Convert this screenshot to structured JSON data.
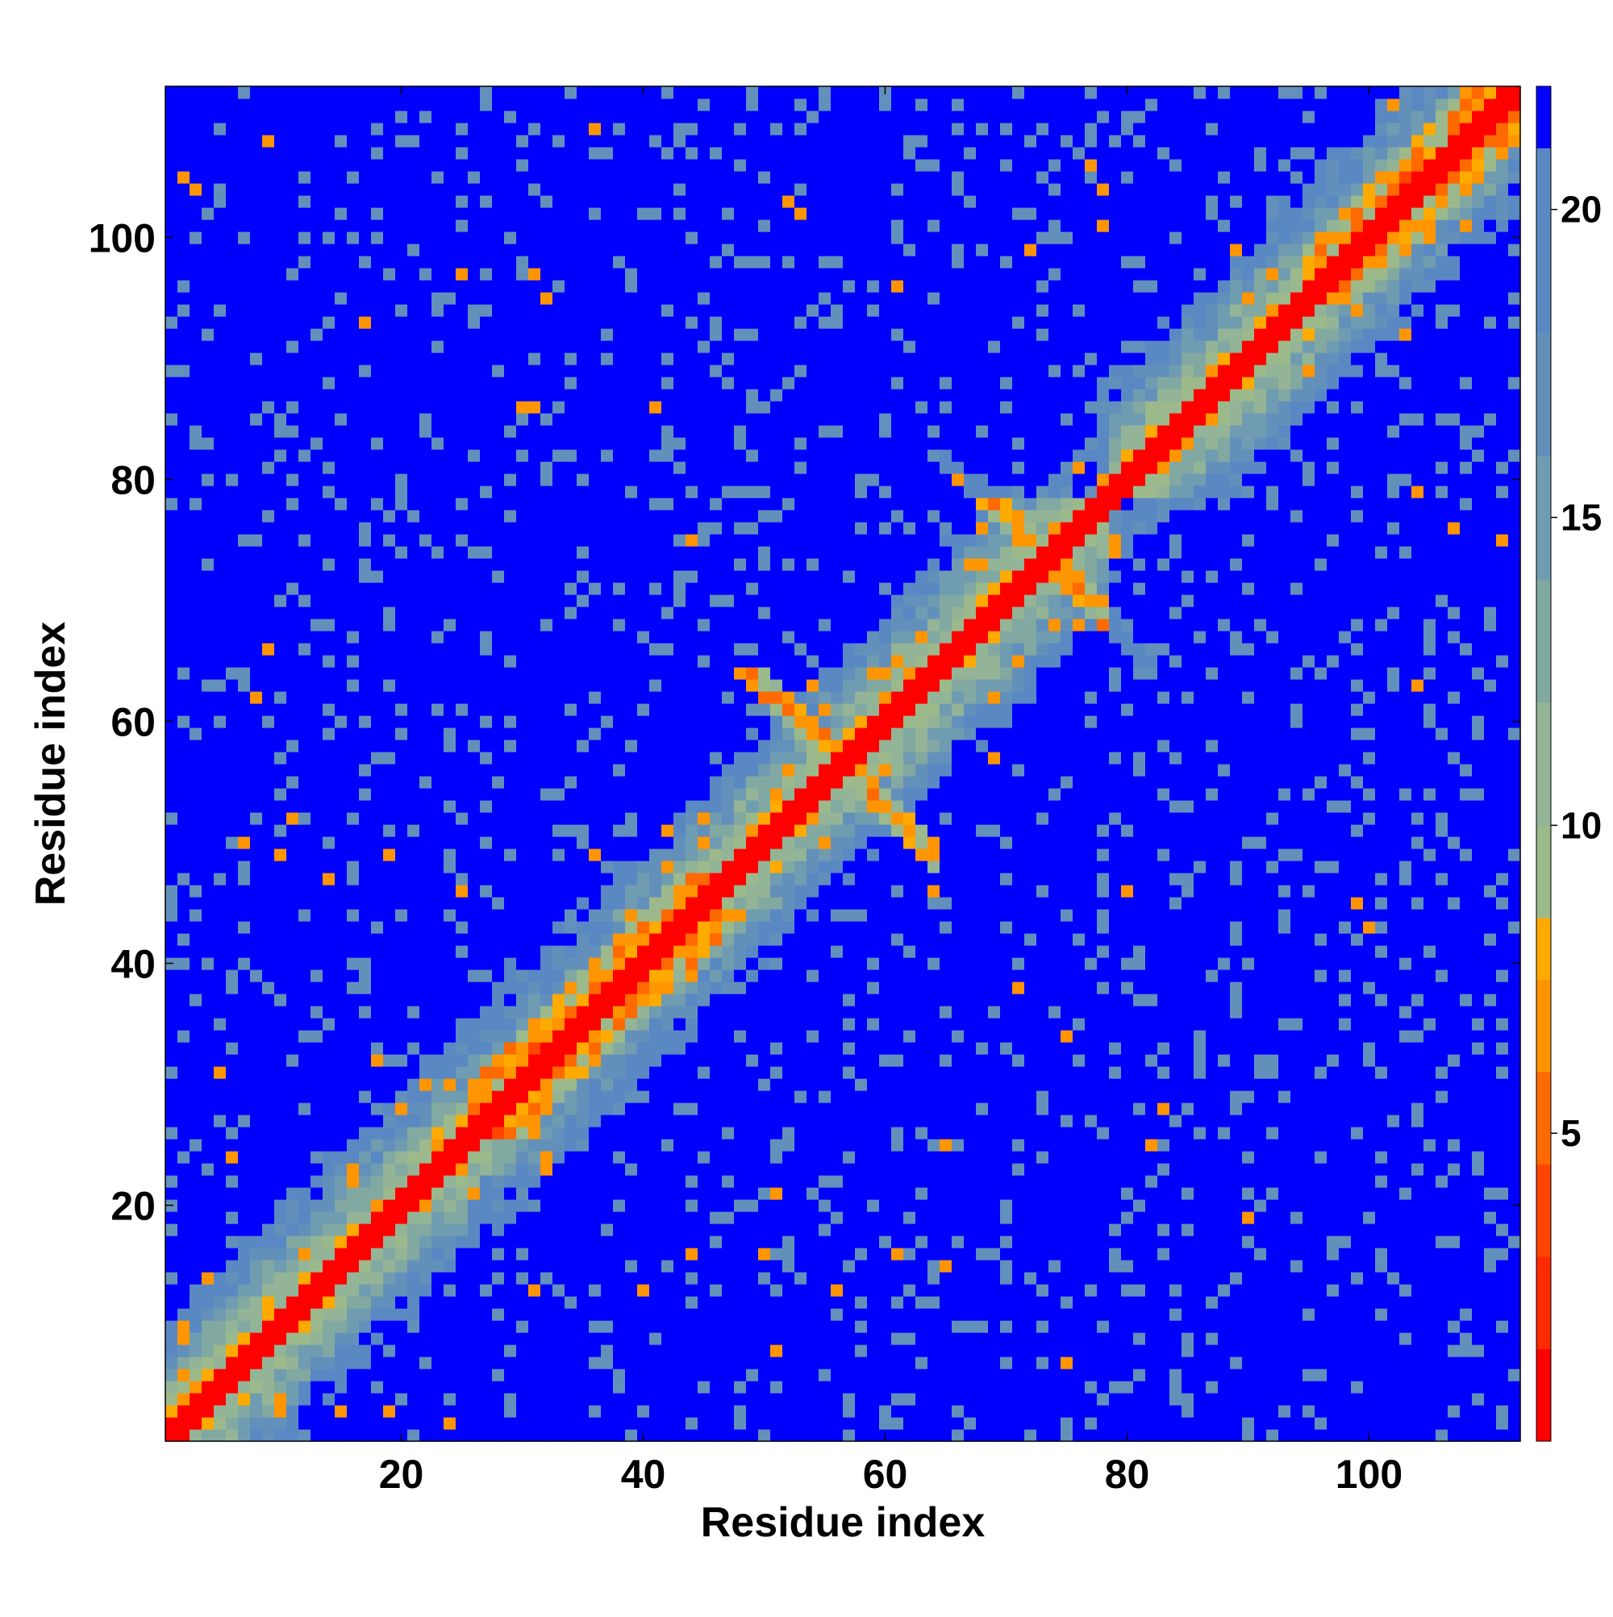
{
  "chart_data": {
    "type": "heatmap",
    "title": "",
    "xlabel": "Residue index",
    "ylabel": "Residue index",
    "xlim": [
      1,
      112
    ],
    "ylim": [
      1,
      112
    ],
    "n_residues": 112,
    "x_ticks": [
      20,
      40,
      60,
      80,
      100
    ],
    "y_ticks": [
      20,
      40,
      60,
      80,
      100
    ],
    "x_tick_labels": [
      "20",
      "40",
      "60",
      "80",
      "100"
    ],
    "y_tick_labels": [
      "20",
      "40",
      "60",
      "80",
      "100"
    ],
    "colorbar": {
      "range": [
        0,
        22
      ],
      "ticks": [
        5,
        10,
        15,
        20
      ],
      "tick_labels": [
        "5",
        "10",
        "15",
        "20"
      ],
      "levels": [
        {
          "max": 1.5,
          "color": "#ff0000"
        },
        {
          "max": 3,
          "color": "#ff2a00"
        },
        {
          "max": 4.5,
          "color": "#ff4500"
        },
        {
          "max": 6,
          "color": "#ff6a00"
        },
        {
          "max": 7.5,
          "color": "#ff9500"
        },
        {
          "max": 8.5,
          "color": "#ffaa00"
        },
        {
          "max": 10,
          "color": "#9cb98c"
        },
        {
          "max": 12,
          "color": "#93b496"
        },
        {
          "max": 14,
          "color": "#82a8a2"
        },
        {
          "max": 16,
          "color": "#6f9cb0"
        },
        {
          "max": 18,
          "color": "#6390bb"
        },
        {
          "max": 21,
          "color": "#5a88c2"
        },
        {
          "max": 999,
          "color": "#0000ff"
        }
      ]
    },
    "description_features": {
      "main_diagonal": "distance near 0 along i=j",
      "helix_band_residues": [
        [
          26,
          47
        ],
        [
          95,
          112
        ]
      ],
      "antidiagonal_contacts": [
        {
          "sum": 113,
          "range": [
            48,
            64
          ]
        },
        {
          "sum": 113,
          "range": [
            63,
            78
          ]
        },
        {
          "sum": 147,
          "range": [
            64,
            82
          ]
        },
        {
          "sum": 147,
          "range": [
            56,
            80
          ]
        },
        {
          "sum": 158,
          "range": [
            69,
            80
          ]
        },
        {
          "sum": 158,
          "range": [
            80,
            91
          ]
        }
      ],
      "far_blocks": [
        [
          27,
          45,
          3,
          22
        ],
        [
          41,
          60,
          3,
          22
        ],
        [
          62,
          80,
          3,
          22
        ],
        [
          22,
          42,
          62,
          80
        ],
        [
          64,
          78,
          79,
          98
        ],
        [
          80,
          97,
          62,
          78
        ],
        [
          40,
          60,
          83,
          105
        ],
        [
          62,
          76,
          83,
          99
        ],
        [
          89,
          105,
          28,
          44
        ],
        [
          91,
          108,
          47,
          60
        ],
        [
          76,
          88,
          3,
          12
        ],
        [
          3,
          20,
          26,
          56
        ],
        [
          3,
          22,
          58,
          75
        ]
      ]
    }
  }
}
